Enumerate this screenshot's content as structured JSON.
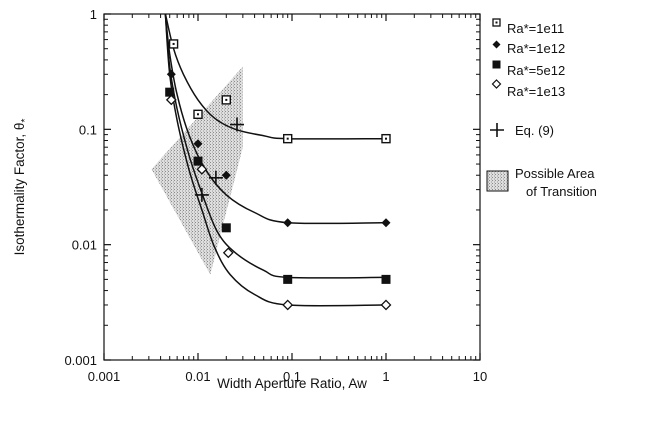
{
  "chart_data": {
    "type": "scatter",
    "title": "",
    "xlabel": "Width Aperture Ratio, Aw",
    "ylabel": "Isothermality Factor, θ",
    "ylabel_subscript": "*",
    "x_scale": "log",
    "y_scale": "log",
    "xlim": [
      0.001,
      10
    ],
    "ylim": [
      0.001,
      1
    ],
    "x_ticks": [
      "0.001",
      "0.01",
      "0.1",
      "1",
      "10"
    ],
    "y_ticks": [
      "1",
      "0.1",
      "0.01",
      "0.001"
    ],
    "grid": false,
    "legend_position": "right",
    "series": [
      {
        "name": "Ra*=1e11",
        "marker": "square-open",
        "points": [
          [
            0.0055,
            0.55
          ],
          [
            0.01,
            0.135
          ],
          [
            0.02,
            0.18
          ],
          [
            0.09,
            0.083
          ],
          [
            1.0,
            0.083
          ]
        ],
        "curve": [
          [
            0.0045,
            1.0
          ],
          [
            0.0055,
            0.5
          ],
          [
            0.007,
            0.3
          ],
          [
            0.01,
            0.18
          ],
          [
            0.015,
            0.125
          ],
          [
            0.025,
            0.1
          ],
          [
            0.05,
            0.088
          ],
          [
            0.09,
            0.083
          ],
          [
            1.0,
            0.083
          ]
        ]
      },
      {
        "name": "Ra*=1e12",
        "marker": "diamond-filled",
        "points": [
          [
            0.0052,
            0.3
          ],
          [
            0.01,
            0.075
          ],
          [
            0.02,
            0.04
          ],
          [
            0.09,
            0.0155
          ],
          [
            1.0,
            0.0155
          ]
        ],
        "curve": [
          [
            0.0045,
            1.0
          ],
          [
            0.005,
            0.45
          ],
          [
            0.006,
            0.2
          ],
          [
            0.008,
            0.09
          ],
          [
            0.012,
            0.045
          ],
          [
            0.02,
            0.027
          ],
          [
            0.04,
            0.019
          ],
          [
            0.09,
            0.0155
          ],
          [
            1.0,
            0.0155
          ]
        ]
      },
      {
        "name": "Ra*=5e12",
        "marker": "square-filled",
        "points": [
          [
            0.005,
            0.21
          ],
          [
            0.01,
            0.053
          ],
          [
            0.02,
            0.014
          ],
          [
            0.09,
            0.005
          ],
          [
            1.0,
            0.005
          ]
        ],
        "curve": [
          [
            0.0045,
            1.0
          ],
          [
            0.005,
            0.35
          ],
          [
            0.006,
            0.15
          ],
          [
            0.008,
            0.06
          ],
          [
            0.011,
            0.028
          ],
          [
            0.016,
            0.013
          ],
          [
            0.025,
            0.0085
          ],
          [
            0.05,
            0.006
          ],
          [
            0.09,
            0.0052
          ],
          [
            1.0,
            0.0052
          ]
        ]
      },
      {
        "name": "Ra*=1e13",
        "marker": "diamond-open",
        "points": [
          [
            0.0052,
            0.18
          ],
          [
            0.011,
            0.045
          ],
          [
            0.021,
            0.0085
          ],
          [
            0.09,
            0.003
          ],
          [
            1.0,
            0.003
          ]
        ],
        "curve": [
          [
            0.0045,
            1.0
          ],
          [
            0.005,
            0.3
          ],
          [
            0.006,
            0.12
          ],
          [
            0.008,
            0.045
          ],
          [
            0.011,
            0.02
          ],
          [
            0.015,
            0.0095
          ],
          [
            0.022,
            0.0055
          ],
          [
            0.04,
            0.0037
          ],
          [
            0.09,
            0.003
          ],
          [
            1.0,
            0.003
          ]
        ]
      },
      {
        "name": "Eq. (9)",
        "marker": "plus",
        "points": [
          [
            0.011,
            0.027
          ],
          [
            0.0155,
            0.038
          ],
          [
            0.026,
            0.11
          ]
        ]
      }
    ],
    "shaded_region": {
      "name": "Possible Area of Transition",
      "polygon": [
        [
          0.0032,
          0.045
        ],
        [
          0.03,
          0.35
        ],
        [
          0.03,
          0.07
        ],
        [
          0.0135,
          0.0055
        ]
      ]
    }
  },
  "legend": {
    "ra1": "Ra*=1e11",
    "ra2": "Ra*=1e12",
    "ra3": "Ra*=5e12",
    "ra4": "Ra*=1e13",
    "eq": "Eq. (9)",
    "area_line1": "Possible Area",
    "area_line2": "of Transition"
  },
  "colors": {
    "ink": "#111111",
    "shade": "#c8c8c8"
  }
}
